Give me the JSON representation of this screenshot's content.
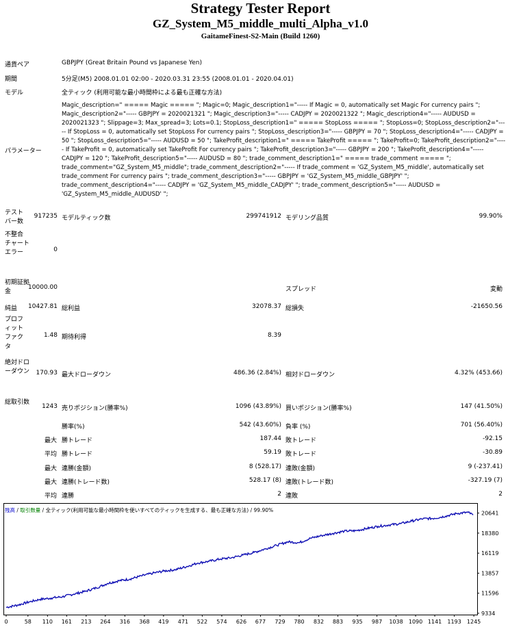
{
  "header": {
    "title": "Strategy Tester Report",
    "ea_name": "GZ_System_M5_middle_multi_Alpha_v1.0",
    "server": "GaitameFinest-S2-Main (Build 1260)"
  },
  "info": {
    "symbol_label": "通貨ペア",
    "symbol_value": "GBPJPY (Great Britain Pound vs Japanese Yen)",
    "period_label": "期間",
    "period_value": "5分足(M5) 2008.01.01 02:00 - 2020.03.31 23:55 (2008.01.01 - 2020.04.01)",
    "model_label": "モデル",
    "model_value": "全ティック (利用可能な最小時間枠による最も正確な方法)",
    "params_label": "パラメーター",
    "params_value": "Magic_description=\" ===== Magic ===== \"; Magic=0; Magic_description1=\"----- If Magic = 0, automatically set Magic For currency pairs \"; Magic_description2=\"----- GBPJPY = 2020021321 \"; Magic_description3=\"----- CADJPY = 2020021322 \"; Magic_description4=\"----- AUDUSD = 2020021323 \"; Slippage=3; Max_spread=3; Lots=0.1; StopLoss_description1=\" ===== StopLoss ===== \"; StopLoss=0; StopLoss_description2=\"----- If StopLoss = 0, automatically set StopLoss For currency pairs \"; StopLoss_description3=\"----- GBPJPY = 70 \"; StopLoss_description4=\"----- CADJPY = 50 \"; StopLoss_description5=\"----- AUDUSD = 50 \"; TakeProfit_description1=\" ===== TakeProfit ===== \"; TakeProfit=0; TakeProfit_description2=\"----- If TakeProfit = 0, automatically set TakeProfit For currency pairs \"; TakeProfit_description3=\"----- GBPJPY = 200 \"; TakeProfit_description4=\"----- CADJPY = 120 \"; TakeProfit_description5=\"----- AUDUSD = 80 \"; trade_comment_description1=\" ===== trade_comment ===== \"; trade_comment=\"GZ_System_M5_middle\"; trade_comment_description2=\"----- If trade_comment = 'GZ_System_M5_middle', automatically set trade_comment For currency pairs \"; trade_comment_description3=\"----- GBPJPY = 'GZ_System_M5_middle_GBPJPY' \"; trade_comment_description4=\"----- CADJPY = 'GZ_System_M5_middle_CADJPY' \"; trade_comment_description5=\"----- AUDUSD = 'GZ_System_M5_middle_AUDUSD' \";"
  },
  "stats": {
    "bars_label": "テストバー数",
    "bars_value": "917235",
    "ticks_label": "モデルティック数",
    "ticks_value": "299741912",
    "quality_label": "モデリング品質",
    "quality_value": "99.90%",
    "mismatch_label": "不整合チャートエラー",
    "mismatch_value": "0",
    "deposit_label": "初期証拠金",
    "deposit_value": "10000.00",
    "spread_label": "スプレッド",
    "spread_value": "変動",
    "net_label": "純益",
    "net_value": "10427.81",
    "gross_profit_label": "総利益",
    "gross_profit_value": "32078.37",
    "gross_loss_label": "総損失",
    "gross_loss_value": "-21650.56",
    "pf_label": "プロフィットファクタ",
    "pf_value": "1.48",
    "expected_label": "期待利得",
    "expected_value": "8.39",
    "abs_dd_label": "絶対ドローダウン",
    "abs_dd_value": "170.93",
    "max_dd_label": "最大ドローダウン",
    "max_dd_value": "486.36 (2.84%)",
    "rel_dd_label": "相対ドローダウン",
    "rel_dd_value": "4.32% (453.66)",
    "total_label": "総取引数",
    "total_value": "1243",
    "short_label": "売りポジション(勝率%)",
    "short_value": "1096 (43.89%)",
    "long_label": "買いポジション(勝率%)",
    "long_value": "147 (41.50%)",
    "win_pct_label": "勝率(%)",
    "win_pct_value": "542 (43.60%)",
    "loss_pct_label": "負率 (%)",
    "loss_pct_value": "701 (56.40%)",
    "max1": "最大",
    "largest_win_label": "勝トレード",
    "largest_win_value": "187.44",
    "largest_loss_label": "敗トレード",
    "largest_loss_value": "-92.15",
    "avg1": "平均",
    "avg_win_label": "勝トレード",
    "avg_win_value": "59.19",
    "avg_loss_label": "敗トレード",
    "avg_loss_value": "-30.89",
    "max2": "最大",
    "cons_win_amt_label": "連勝(金額)",
    "cons_win_amt_value": "8 (528.17)",
    "cons_loss_amt_label": "連敗(金額)",
    "cons_loss_amt_value": "9 (-237.41)",
    "max3": "最大",
    "cons_win_cnt_label": "連勝(トレード数)",
    "cons_win_cnt_value": "528.17 (8)",
    "cons_loss_cnt_label": "連敗(トレード数)",
    "cons_loss_cnt_value": "-327.19 (7)",
    "avg2": "平均",
    "avg_cons_win_label": "連勝",
    "avg_cons_win_value": "2",
    "avg_cons_loss_label": "連敗",
    "avg_cons_loss_value": "2"
  },
  "chart_legend": {
    "balance": "残高",
    "sep1": " / ",
    "lots": "取引数量",
    "sep2": " / ",
    "model": "全ティック(利用可能な最小時間枠を使いすべてのティックを生成する、最も正確な方法)",
    "sep3": " / ",
    "quality": "99.90%",
    "colors": {
      "balance": "#0000cc",
      "lots": "#008000",
      "line": "#1010b4"
    }
  },
  "chart_data": {
    "type": "line",
    "x_ticks": [
      "0",
      "58",
      "110",
      "161",
      "213",
      "264",
      "316",
      "368",
      "419",
      "471",
      "522",
      "574",
      "626",
      "677",
      "729",
      "780",
      "832",
      "883",
      "935",
      "987",
      "1038",
      "1090",
      "1141",
      "1193",
      "1245"
    ],
    "y_ticks": [
      "9334",
      "11596",
      "13857",
      "16119",
      "18380",
      "20641"
    ],
    "xlim": [
      0,
      1243
    ],
    "ylim": [
      9334,
      21000
    ],
    "series": [
      {
        "name": "残高",
        "x": [
          0,
          30,
          60,
          90,
          120,
          150,
          180,
          210,
          240,
          270,
          300,
          330,
          360,
          390,
          420,
          450,
          480,
          510,
          540,
          570,
          600,
          630,
          660,
          690,
          720,
          750,
          780,
          810,
          840,
          870,
          900,
          930,
          960,
          990,
          1020,
          1050,
          1080,
          1110,
          1140,
          1170,
          1200,
          1230,
          1243
        ],
        "y": [
          10000,
          10250,
          10600,
          10900,
          11050,
          11200,
          11500,
          11800,
          12200,
          12700,
          13000,
          13200,
          13550,
          13850,
          14100,
          14250,
          14600,
          15000,
          15200,
          15450,
          15600,
          15900,
          16200,
          16600,
          17000,
          17400,
          17300,
          17800,
          18100,
          18350,
          18600,
          18650,
          18900,
          19150,
          19300,
          19450,
          19750,
          20000,
          20050,
          20300,
          20600,
          20720,
          20428
        ]
      }
    ]
  }
}
